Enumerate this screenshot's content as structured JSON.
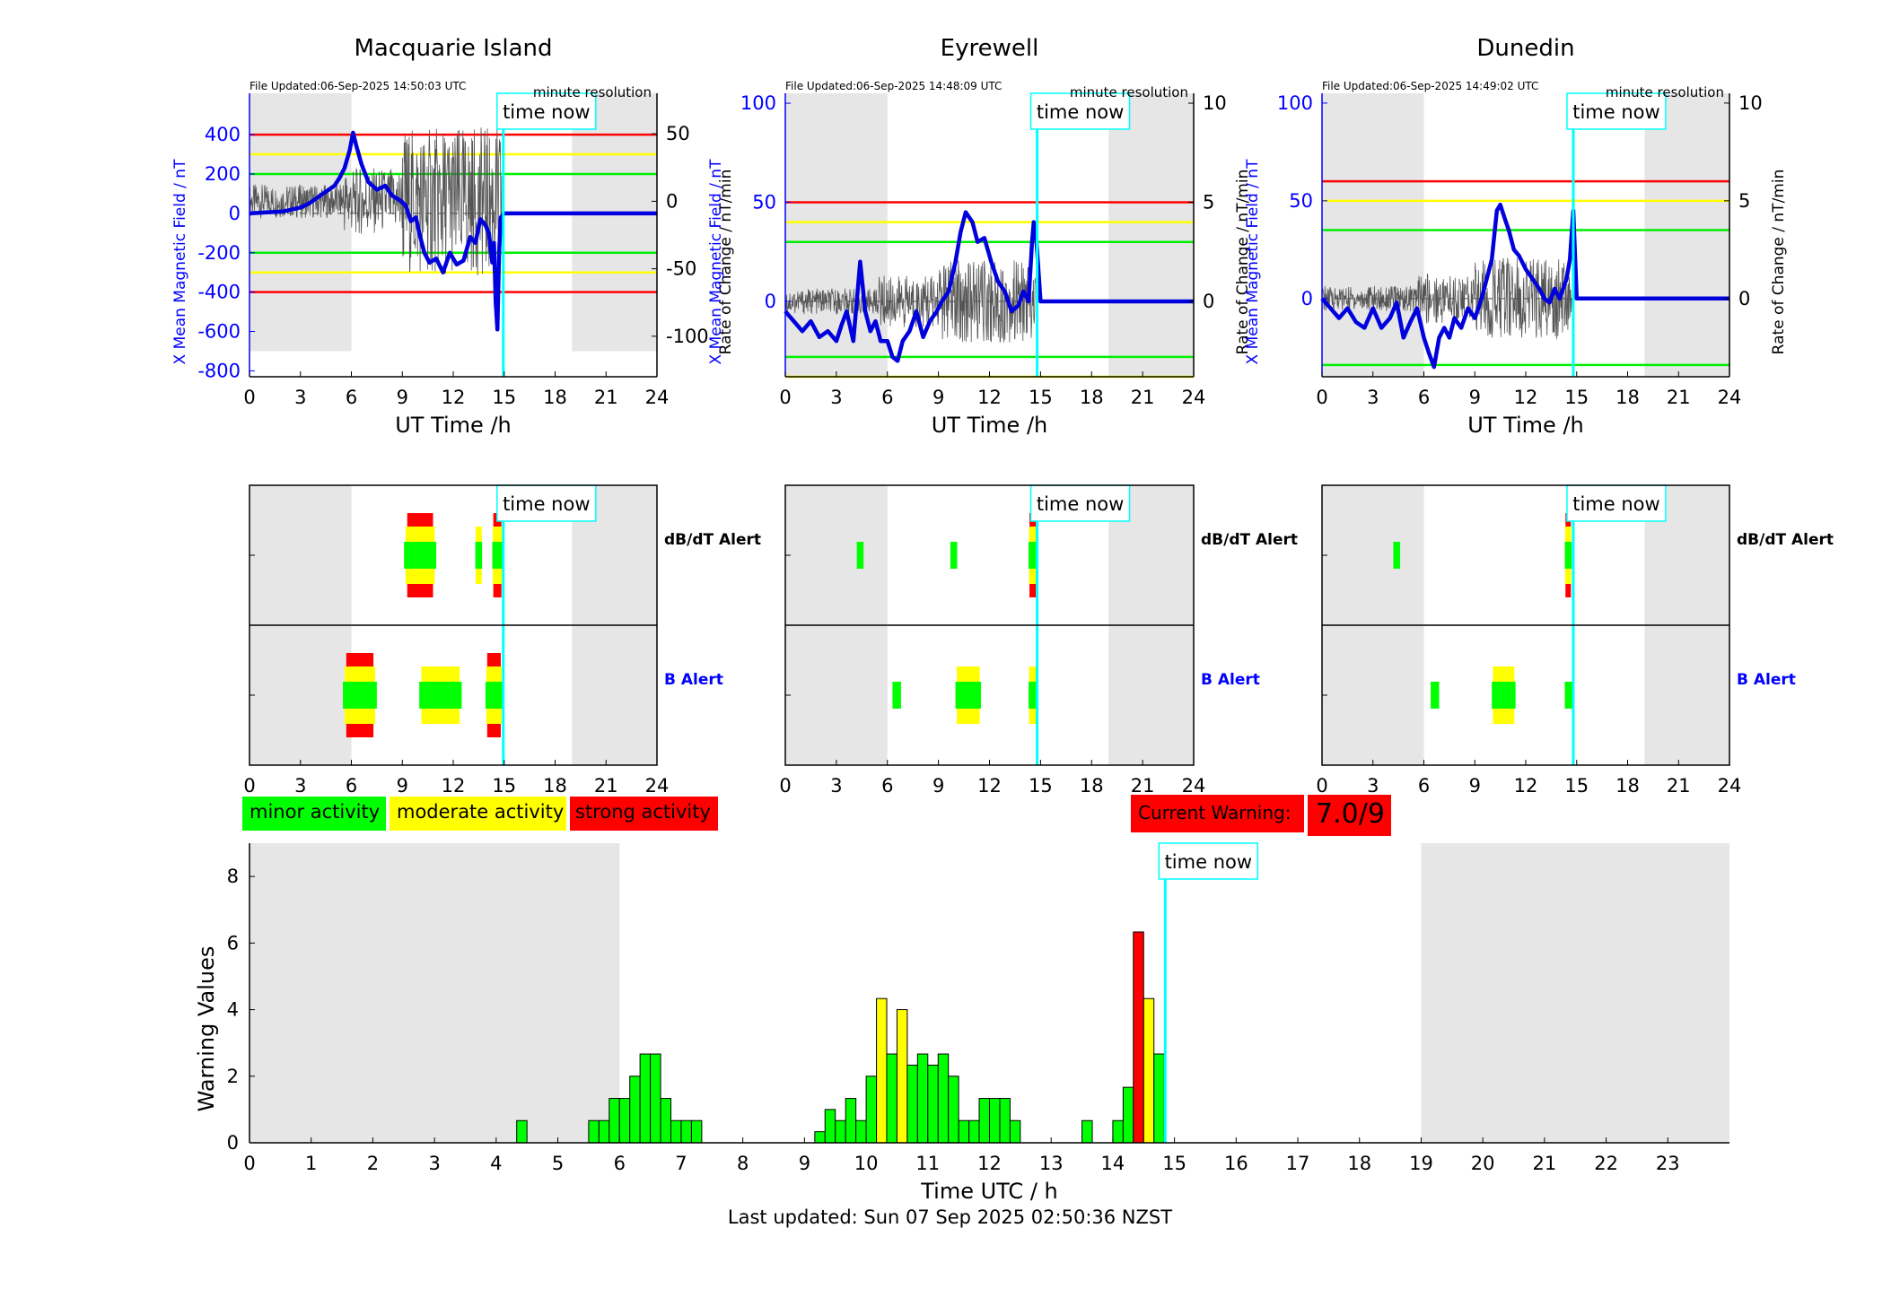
{
  "chart_data": [
    {
      "type": "line",
      "title": "Macquarie Island",
      "file_updated": "File Updated:06-Sep-2025 14:50:03 UTC",
      "resolution": "minute resolution",
      "xlabel": "UT Time /h",
      "ylabel_left": "X Mean Magnetic Field / nT",
      "ylabel_right": "Rate of Change / nT/min",
      "xlim": [
        0,
        24
      ],
      "x_ticks": [
        0,
        3,
        6,
        9,
        12,
        15,
        18,
        21,
        24
      ],
      "ylim_left": [
        -830,
        610
      ],
      "y_ticks_left": [
        -800,
        -600,
        -400,
        -200,
        0,
        200,
        400
      ],
      "ylim_right": [
        -130,
        80
      ],
      "y_ticks_right": [
        -100,
        -50,
        0,
        50
      ],
      "night_shading_h": [
        [
          0,
          6
        ],
        [
          19,
          24
        ]
      ],
      "thresholds_nT": {
        "red": [
          400,
          -400
        ],
        "yellow": [
          300,
          -300
        ],
        "green": [
          200,
          -200
        ]
      },
      "time_now_h": 14.95,
      "time_now_label": "time now",
      "series": [
        {
          "color": "#0000dd",
          "x": [
            0,
            1,
            2,
            3,
            3.5,
            4,
            4.5,
            5,
            5.3,
            5.6,
            5.9,
            6.1,
            6.3,
            6.6,
            7,
            7.5,
            8,
            8.4,
            8.8,
            9.2,
            9.5,
            9.8,
            10,
            10.3,
            10.6,
            11,
            11.4,
            11.8,
            12.2,
            12.6,
            13,
            13.3,
            13.6,
            13.9,
            14.1,
            14.3,
            14.4,
            14.5,
            14.6,
            14.7,
            14.8,
            15,
            24
          ],
          "y": [
            0,
            5,
            10,
            30,
            50,
            80,
            110,
            140,
            180,
            230,
            320,
            410,
            340,
            250,
            160,
            120,
            140,
            90,
            70,
            40,
            -40,
            -20,
            -100,
            -200,
            -250,
            -230,
            -300,
            -200,
            -260,
            -240,
            -120,
            -150,
            -30,
            -60,
            -100,
            -250,
            -150,
            -450,
            -590,
            -200,
            -20,
            0,
            0
          ]
        }
      ]
    },
    {
      "type": "line",
      "title": "Eyrewell",
      "file_updated": "File Updated:06-Sep-2025 14:48:09 UTC",
      "resolution": "minute resolution",
      "xlabel": "UT Time /h",
      "ylabel_left": "X Mean Magnetic Field / nT",
      "ylabel_right": "Rate of Change / nT/min",
      "xlim": [
        0,
        24
      ],
      "x_ticks": [
        0,
        3,
        6,
        9,
        12,
        15,
        18,
        21,
        24
      ],
      "ylim_left": [
        -38,
        105
      ],
      "y_ticks_left": [
        0,
        50,
        100
      ],
      "ylim_right": [
        -3.8,
        10.5
      ],
      "y_ticks_right": [
        0,
        5,
        10
      ],
      "night_shading_h": [
        [
          0,
          6
        ],
        [
          19,
          24
        ]
      ],
      "thresholds_nT": {
        "red": [
          50
        ],
        "yellow": [
          40,
          -38
        ],
        "green": [
          30,
          -28
        ]
      },
      "time_now_h": 14.8,
      "time_now_label": "time now",
      "series": [
        {
          "color": "#0000dd",
          "x": [
            0,
            0.5,
            1,
            1.5,
            2,
            2.5,
            3,
            3.3,
            3.6,
            4,
            4.4,
            4.7,
            5,
            5.3,
            5.6,
            6,
            6.3,
            6.6,
            6.9,
            7.3,
            7.7,
            8.1,
            8.5,
            8.9,
            9.2,
            9.6,
            10,
            10.3,
            10.6,
            11,
            11.3,
            11.7,
            12.1,
            12.5,
            12.9,
            13.3,
            13.7,
            14,
            14.3,
            14.5,
            14.6,
            14.7,
            15,
            24
          ],
          "y": [
            -5,
            -10,
            -15,
            -10,
            -18,
            -15,
            -20,
            -12,
            -5,
            -20,
            20,
            -5,
            -15,
            -10,
            -20,
            -20,
            -28,
            -30,
            -20,
            -15,
            -5,
            -18,
            -10,
            -5,
            0,
            5,
            20,
            35,
            45,
            40,
            30,
            32,
            20,
            10,
            5,
            -5,
            -2,
            5,
            0,
            30,
            40,
            38,
            0,
            0
          ]
        }
      ]
    },
    {
      "type": "line",
      "title": "Dunedin",
      "file_updated": "File Updated:06-Sep-2025 14:49:02 UTC",
      "resolution": "minute resolution",
      "xlabel": "UT Time /h",
      "ylabel_left": "X Mean Magnetic Field / nT",
      "ylabel_right": "Rate of Change / nT/min",
      "xlim": [
        0,
        24
      ],
      "x_ticks": [
        0,
        3,
        6,
        9,
        12,
        15,
        18,
        21,
        24
      ],
      "ylim_left": [
        -40,
        105
      ],
      "y_ticks_left": [
        0,
        50,
        100
      ],
      "ylim_right": [
        -4,
        10.5
      ],
      "y_ticks_right": [
        0,
        5,
        10
      ],
      "night_shading_h": [
        [
          0,
          6
        ],
        [
          19,
          24
        ]
      ],
      "thresholds_nT": {
        "red": [
          60
        ],
        "yellow": [
          50
        ],
        "green": [
          35,
          -34
        ]
      },
      "time_now_h": 14.8,
      "time_now_label": "time now",
      "series": [
        {
          "color": "#0000dd",
          "x": [
            0,
            0.5,
            1,
            1.5,
            2,
            2.5,
            3,
            3.5,
            4,
            4.4,
            4.8,
            5.2,
            5.6,
            6,
            6.3,
            6.6,
            6.9,
            7.2,
            7.5,
            7.8,
            8.2,
            8.6,
            9,
            9.4,
            9.7,
            10,
            10.3,
            10.5,
            10.8,
            11,
            11.3,
            11.6,
            12,
            12.4,
            12.8,
            13.1,
            13.4,
            13.7,
            14,
            14.2,
            14.4,
            14.6,
            14.8,
            15,
            24
          ],
          "y": [
            0,
            -5,
            -10,
            -5,
            -12,
            -15,
            -5,
            -15,
            -10,
            -2,
            -20,
            -12,
            -5,
            -20,
            -28,
            -35,
            -20,
            -15,
            -20,
            -10,
            -15,
            -5,
            -10,
            0,
            10,
            20,
            45,
            48,
            40,
            35,
            25,
            22,
            15,
            10,
            5,
            0,
            -2,
            5,
            0,
            5,
            10,
            20,
            45,
            0,
            0
          ]
        }
      ]
    },
    {
      "type": "bar",
      "chart": "alerts",
      "title": "Macquarie Island",
      "rows": [
        "dB/dT Alert",
        "B Alert"
      ],
      "row_colors": [
        "#000000",
        "#0000ff"
      ],
      "xlim": [
        0,
        24
      ],
      "x_ticks": [
        0,
        3,
        6,
        9,
        12,
        15,
        18,
        21,
        24
      ],
      "night_shading_h": [
        [
          0,
          6
        ],
        [
          19,
          24
        ]
      ],
      "time_now_h": 14.95,
      "time_now_label": "time now",
      "alerts": [
        {
          "row": 0,
          "start": 9.1,
          "end": 11.0,
          "level": 3
        },
        {
          "row": 0,
          "start": 13.3,
          "end": 13.7,
          "level": 2
        },
        {
          "row": 0,
          "start": 14.3,
          "end": 14.9,
          "level": 3
        },
        {
          "row": 1,
          "start": 5.5,
          "end": 7.5,
          "level": 3
        },
        {
          "row": 1,
          "start": 10.0,
          "end": 12.5,
          "level": 2
        },
        {
          "row": 1,
          "start": 13.9,
          "end": 14.9,
          "level": 3
        }
      ]
    },
    {
      "type": "bar",
      "chart": "alerts",
      "title": "Eyrewell",
      "rows": [
        "dB/dT Alert",
        "B Alert"
      ],
      "row_colors": [
        "#000000",
        "#0000ff"
      ],
      "xlim": [
        0,
        24
      ],
      "x_ticks": [
        0,
        3,
        6,
        9,
        12,
        15,
        18,
        21,
        24
      ],
      "night_shading_h": [
        [
          0,
          6
        ],
        [
          19,
          24
        ]
      ],
      "time_now_h": 14.8,
      "time_now_label": "time now",
      "alerts": [
        {
          "row": 0,
          "start": 4.2,
          "end": 4.6,
          "level": 1
        },
        {
          "row": 0,
          "start": 9.7,
          "end": 10.1,
          "level": 1
        },
        {
          "row": 0,
          "start": 14.3,
          "end": 14.8,
          "level": 3
        },
        {
          "row": 1,
          "start": 6.3,
          "end": 6.8,
          "level": 1
        },
        {
          "row": 1,
          "start": 10.0,
          "end": 11.5,
          "level": 2
        },
        {
          "row": 1,
          "start": 14.3,
          "end": 14.8,
          "level": 2
        }
      ]
    },
    {
      "type": "bar",
      "chart": "alerts",
      "title": "Dunedin",
      "rows": [
        "dB/dT Alert",
        "B Alert"
      ],
      "row_colors": [
        "#000000",
        "#0000ff"
      ],
      "xlim": [
        0,
        24
      ],
      "x_ticks": [
        0,
        3,
        6,
        9,
        12,
        15,
        18,
        21,
        24
      ],
      "night_shading_h": [
        [
          0,
          6
        ],
        [
          19,
          24
        ]
      ],
      "time_now_h": 14.8,
      "time_now_label": "time now",
      "alerts": [
        {
          "row": 0,
          "start": 4.2,
          "end": 4.6,
          "level": 1
        },
        {
          "row": 0,
          "start": 14.3,
          "end": 14.7,
          "level": 3
        },
        {
          "row": 1,
          "start": 6.4,
          "end": 6.9,
          "level": 1
        },
        {
          "row": 1,
          "start": 10.0,
          "end": 11.4,
          "level": 2
        },
        {
          "row": 1,
          "start": 14.3,
          "end": 14.8,
          "level": 1
        }
      ]
    },
    {
      "type": "bar",
      "chart": "warning-values",
      "xlabel": "Time UTC / h",
      "ylabel": "Warning Values",
      "xlim": [
        0,
        24
      ],
      "x_ticks": [
        0,
        1,
        2,
        3,
        4,
        5,
        6,
        7,
        8,
        9,
        10,
        11,
        12,
        13,
        14,
        15,
        16,
        17,
        18,
        19,
        20,
        21,
        22,
        23
      ],
      "ylim": [
        0,
        9
      ],
      "y_ticks": [
        0,
        2,
        4,
        6,
        8
      ],
      "night_shading_h": [
        [
          0,
          6
        ],
        [
          19,
          24
        ]
      ],
      "time_now_h": 14.85,
      "time_now_label": "time now",
      "bin_width_h": 0.1667,
      "bars": [
        {
          "x": 4.333,
          "value": 0.667,
          "color": "#00ff00"
        },
        {
          "x": 5.5,
          "value": 0.667,
          "color": "#00ff00"
        },
        {
          "x": 5.667,
          "value": 0.667,
          "color": "#00ff00"
        },
        {
          "x": 5.833,
          "value": 1.333,
          "color": "#00ff00"
        },
        {
          "x": 6.0,
          "value": 1.333,
          "color": "#00ff00"
        },
        {
          "x": 6.167,
          "value": 2.0,
          "color": "#00ff00"
        },
        {
          "x": 6.333,
          "value": 2.667,
          "color": "#00ff00"
        },
        {
          "x": 6.5,
          "value": 2.667,
          "color": "#00ff00"
        },
        {
          "x": 6.667,
          "value": 1.333,
          "color": "#00ff00"
        },
        {
          "x": 6.833,
          "value": 0.667,
          "color": "#00ff00"
        },
        {
          "x": 7.0,
          "value": 0.667,
          "color": "#00ff00"
        },
        {
          "x": 7.167,
          "value": 0.667,
          "color": "#00ff00"
        },
        {
          "x": 9.167,
          "value": 0.333,
          "color": "#00ff00"
        },
        {
          "x": 9.333,
          "value": 1.0,
          "color": "#00ff00"
        },
        {
          "x": 9.5,
          "value": 0.667,
          "color": "#00ff00"
        },
        {
          "x": 9.667,
          "value": 1.333,
          "color": "#00ff00"
        },
        {
          "x": 9.833,
          "value": 0.667,
          "color": "#00ff00"
        },
        {
          "x": 10.0,
          "value": 2.0,
          "color": "#00ff00"
        },
        {
          "x": 10.167,
          "value": 4.333,
          "color": "#ffff00"
        },
        {
          "x": 10.333,
          "value": 2.667,
          "color": "#00ff00"
        },
        {
          "x": 10.5,
          "value": 4.0,
          "color": "#ffff00"
        },
        {
          "x": 10.667,
          "value": 2.333,
          "color": "#00ff00"
        },
        {
          "x": 10.833,
          "value": 2.667,
          "color": "#00ff00"
        },
        {
          "x": 11.0,
          "value": 2.333,
          "color": "#00ff00"
        },
        {
          "x": 11.167,
          "value": 2.667,
          "color": "#00ff00"
        },
        {
          "x": 11.333,
          "value": 2.0,
          "color": "#00ff00"
        },
        {
          "x": 11.5,
          "value": 0.667,
          "color": "#00ff00"
        },
        {
          "x": 11.667,
          "value": 0.667,
          "color": "#00ff00"
        },
        {
          "x": 11.833,
          "value": 1.333,
          "color": "#00ff00"
        },
        {
          "x": 12.0,
          "value": 1.333,
          "color": "#00ff00"
        },
        {
          "x": 12.167,
          "value": 1.333,
          "color": "#00ff00"
        },
        {
          "x": 12.333,
          "value": 0.667,
          "color": "#00ff00"
        },
        {
          "x": 13.5,
          "value": 0.667,
          "color": "#00ff00"
        },
        {
          "x": 14.0,
          "value": 0.667,
          "color": "#00ff00"
        },
        {
          "x": 14.167,
          "value": 1.667,
          "color": "#00ff00"
        },
        {
          "x": 14.333,
          "value": 6.333,
          "color": "#ff0000"
        },
        {
          "x": 14.5,
          "value": 4.333,
          "color": "#ffff00"
        },
        {
          "x": 14.667,
          "value": 2.667,
          "color": "#00ff00"
        }
      ]
    }
  ],
  "legend": [
    {
      "label": "minor activity",
      "color": "#00ff00"
    },
    {
      "label": "moderate activity",
      "color": "#ffff00"
    },
    {
      "label": "strong activity",
      "color": "#ff0000"
    }
  ],
  "current_warning": {
    "label": "Current Warning:",
    "value": "7.0/9"
  },
  "last_updated": "Last updated: Sun 07 Sep 2025 02:50:36 NZST"
}
